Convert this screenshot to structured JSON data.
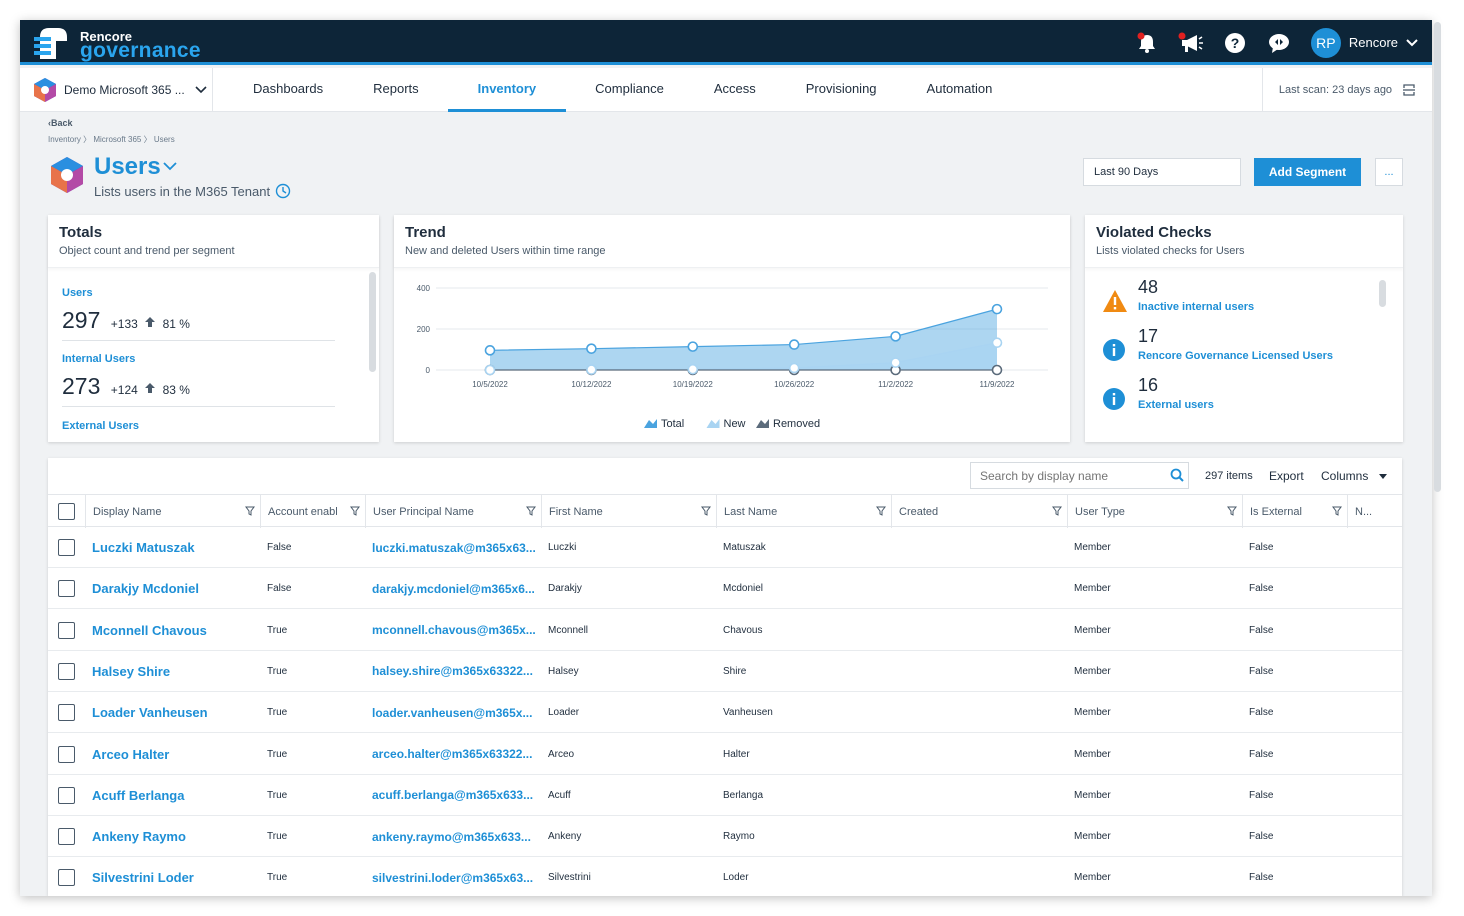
{
  "app": {
    "logo_line1": "Rencore",
    "logo_line2": "governance",
    "user_initials": "RP",
    "user_name": "Rencore",
    "accent": "#1e8fd6",
    "header_bg": "#0d2538"
  },
  "header_icons": [
    "notification-bell-icon",
    "announcement-megaphone-icon",
    "help-icon",
    "feedback-icon"
  ],
  "tenant": {
    "name": "Demo Microsoft 365 ..."
  },
  "nav": {
    "tabs": [
      {
        "label": "Dashboards",
        "active": false
      },
      {
        "label": "Reports",
        "active": false
      },
      {
        "label": "Inventory",
        "active": true
      },
      {
        "label": "Compliance",
        "active": false
      },
      {
        "label": "Access",
        "active": false
      },
      {
        "label": "Provisioning",
        "active": false
      },
      {
        "label": "Automation",
        "active": false
      }
    ],
    "last_scan": "Last scan: 23 days ago"
  },
  "breadcrumb": {
    "back": "Back",
    "path": "Inventory 〉 Microsoft 365 〉 Users"
  },
  "page": {
    "title": "Users",
    "subtitle": "Lists users in the M365 Tenant",
    "time_range": "Last 90 Days",
    "add_segment": "Add Segment",
    "more": "..."
  },
  "totals": {
    "title": "Totals",
    "subtitle": "Object count and trend per segment",
    "items": [
      {
        "label": "Users",
        "count": "297",
        "delta": "+133",
        "percent": "81 %"
      },
      {
        "label": "Internal Users",
        "count": "273",
        "delta": "+124",
        "percent": "83 %"
      },
      {
        "label": "External Users",
        "count": "",
        "delta": "",
        "percent": ""
      }
    ]
  },
  "trend": {
    "title": "Trend",
    "subtitle": "New and deleted Users within time range"
  },
  "chart_data": {
    "type": "area",
    "x": [
      "10/5/2022",
      "10/12/2022",
      "10/19/2022",
      "10/26/2022",
      "11/2/2022",
      "11/9/2022"
    ],
    "yticks": [
      0,
      200,
      400
    ],
    "ylim": [
      0,
      400
    ],
    "legend_position": "bottom",
    "series": [
      {
        "name": "Total",
        "color": "#4aa3df",
        "values": [
          96,
          104,
          114,
          124,
          164,
          297
        ]
      },
      {
        "name": "New",
        "color": "#a9d4f2",
        "values": [
          0,
          2,
          4,
          10,
          36,
          133
        ]
      },
      {
        "name": "Removed",
        "color": "#5b6b7b",
        "values": [
          0,
          0,
          0,
          0,
          0,
          0
        ]
      }
    ]
  },
  "violated": {
    "title": "Violated Checks",
    "subtitle": "Lists violated checks for Users",
    "items": [
      {
        "count": "48",
        "label": "Inactive internal users",
        "icon": "warning-icon"
      },
      {
        "count": "17",
        "label": "Rencore Governance Licensed Users",
        "icon": "info-icon"
      },
      {
        "count": "16",
        "label": "External users",
        "icon": "info-icon"
      }
    ]
  },
  "table": {
    "search_placeholder": "Search by display name",
    "items_count": "297 items",
    "export": "Export",
    "columns": "Columns",
    "headers": [
      "Display Name",
      "Account enabl",
      "User Principal Name",
      "First Name",
      "Last Name",
      "Created",
      "User Type",
      "Is External",
      "N..."
    ],
    "rows": [
      {
        "display_name": "Luczki Matuszak",
        "enabled": "False",
        "upn": "luczki.matuszak@m365x63...",
        "first": "Luczki",
        "last": "Matuszak",
        "created": "",
        "type": "Member",
        "external": "False"
      },
      {
        "display_name": "Darakjy Mcdoniel",
        "enabled": "False",
        "upn": "darakjy.mcdoniel@m365x6...",
        "first": "Darakjy",
        "last": "Mcdoniel",
        "created": "",
        "type": "Member",
        "external": "False"
      },
      {
        "display_name": "Mconnell Chavous",
        "enabled": "True",
        "upn": "mconnell.chavous@m365x...",
        "first": "Mconnell",
        "last": "Chavous",
        "created": "",
        "type": "Member",
        "external": "False"
      },
      {
        "display_name": "Halsey Shire",
        "enabled": "True",
        "upn": "halsey.shire@m365x63322...",
        "first": "Halsey",
        "last": "Shire",
        "created": "",
        "type": "Member",
        "external": "False"
      },
      {
        "display_name": "Loader Vanheusen",
        "enabled": "True",
        "upn": "loader.vanheusen@m365x...",
        "first": "Loader",
        "last": "Vanheusen",
        "created": "",
        "type": "Member",
        "external": "False"
      },
      {
        "display_name": "Arceo Halter",
        "enabled": "True",
        "upn": "arceo.halter@m365x63322...",
        "first": "Arceo",
        "last": "Halter",
        "created": "",
        "type": "Member",
        "external": "False"
      },
      {
        "display_name": "Acuff Berlanga",
        "enabled": "True",
        "upn": "acuff.berlanga@m365x633...",
        "first": "Acuff",
        "last": "Berlanga",
        "created": "",
        "type": "Member",
        "external": "False"
      },
      {
        "display_name": "Ankeny Raymo",
        "enabled": "True",
        "upn": "ankeny.raymo@m365x633...",
        "first": "Ankeny",
        "last": "Raymo",
        "created": "",
        "type": "Member",
        "external": "False"
      },
      {
        "display_name": "Silvestrini Loder",
        "enabled": "True",
        "upn": "silvestrini.loder@m365x63...",
        "first": "Silvestrini",
        "last": "Loder",
        "created": "",
        "type": "Member",
        "external": "False"
      }
    ]
  }
}
